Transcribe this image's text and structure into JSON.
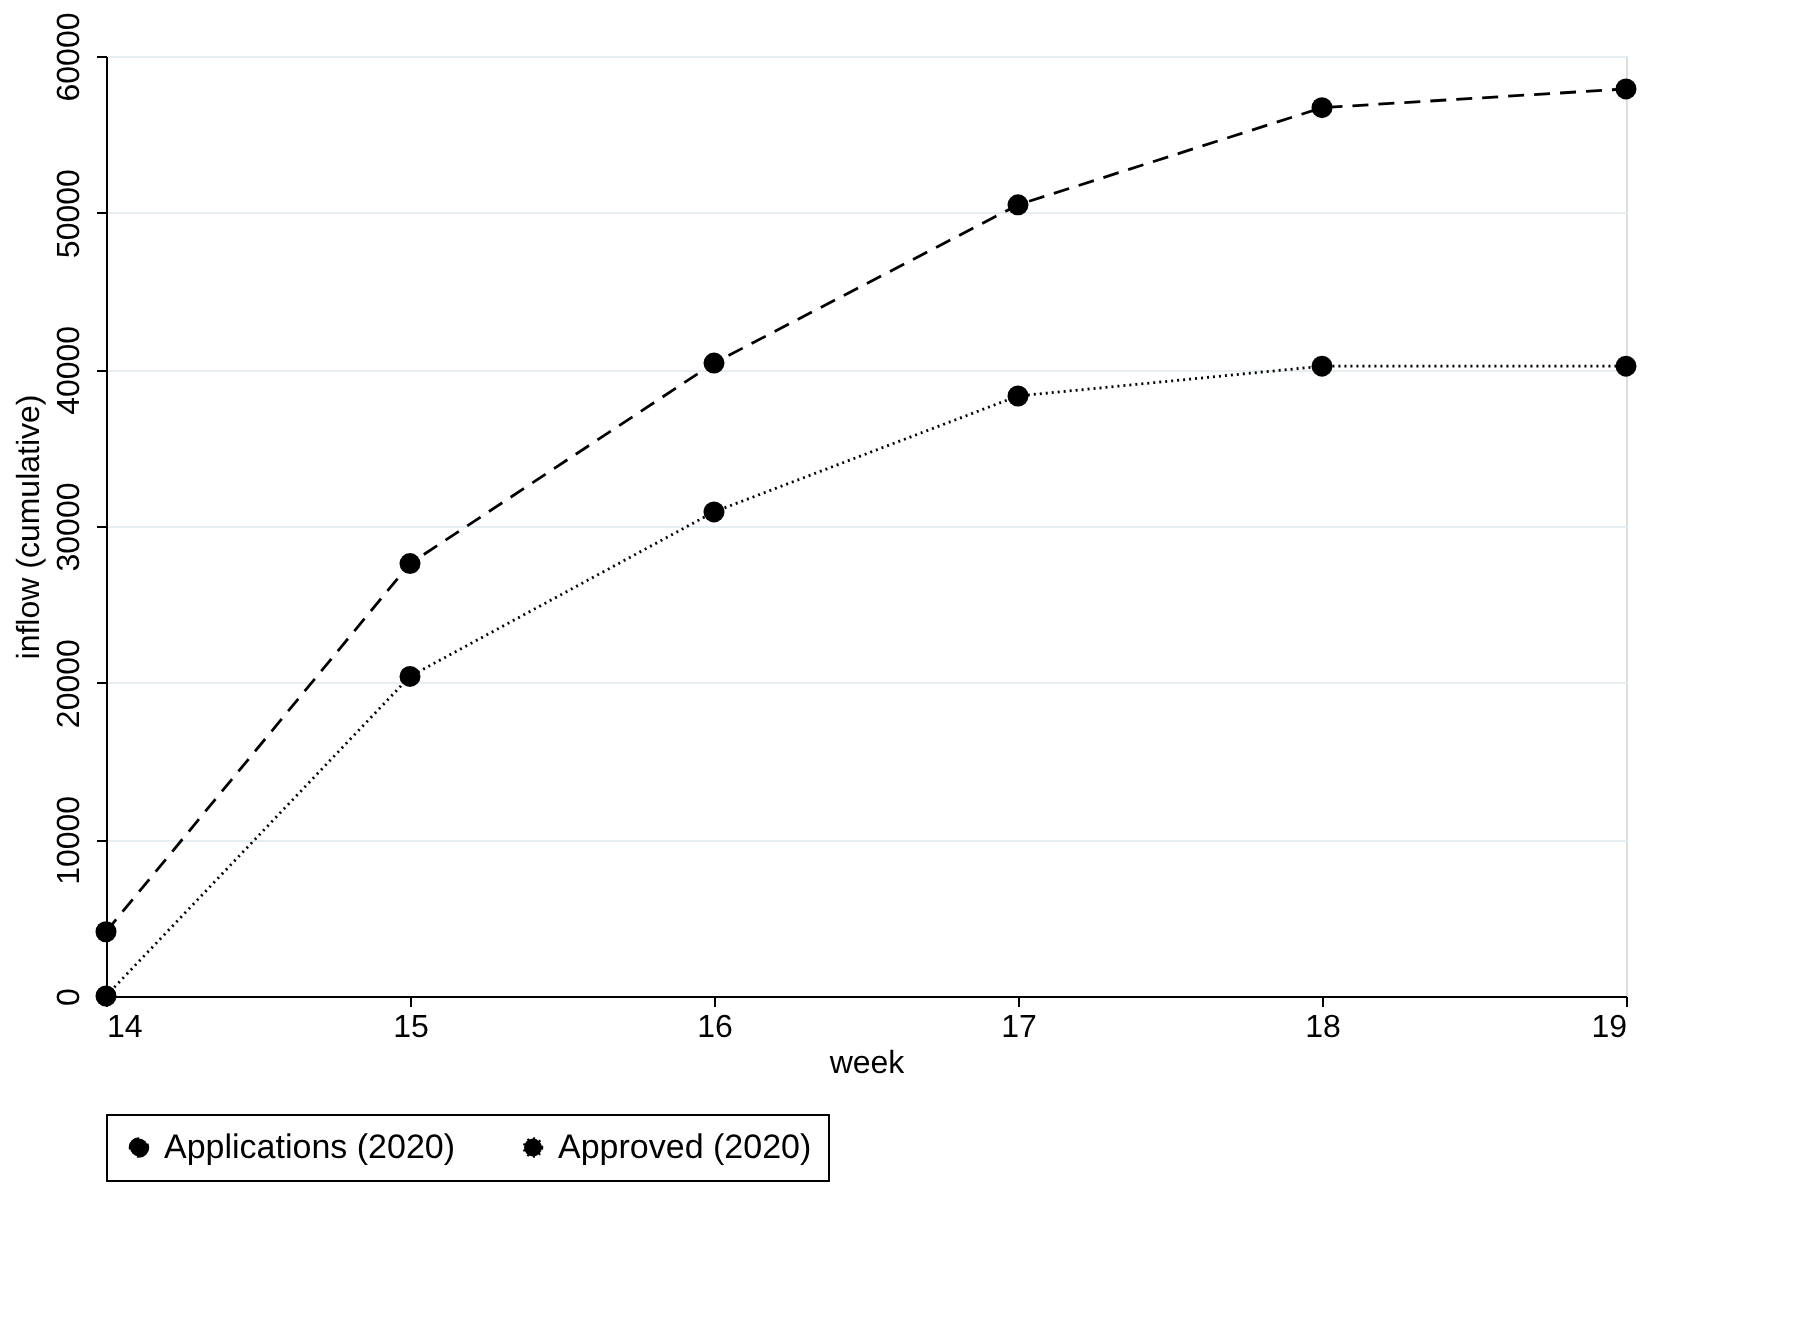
{
  "chart_data": {
    "type": "line",
    "xlabel": "week",
    "ylabel": "inflow (cumulative)",
    "x": [
      14,
      15,
      16,
      17,
      18,
      19
    ],
    "series": [
      {
        "name": "Applications (2020)",
        "color": "#000000",
        "line_style": "dashed",
        "values": [
          4100,
          27600,
          40400,
          50500,
          56700,
          57900
        ]
      },
      {
        "name": "Approved (2020)",
        "color": "#000000",
        "line_style": "dotted",
        "values": [
          0,
          20400,
          30900,
          38300,
          40200,
          40200
        ]
      }
    ],
    "xlim": [
      14,
      19
    ],
    "xticks": [
      14,
      15,
      16,
      17,
      18,
      19
    ],
    "ylim": [
      0,
      60000
    ],
    "yticks": [
      0,
      10000,
      20000,
      30000,
      40000,
      50000,
      60000
    ],
    "grid": "y",
    "legend": "bottom",
    "marker": "circle"
  }
}
